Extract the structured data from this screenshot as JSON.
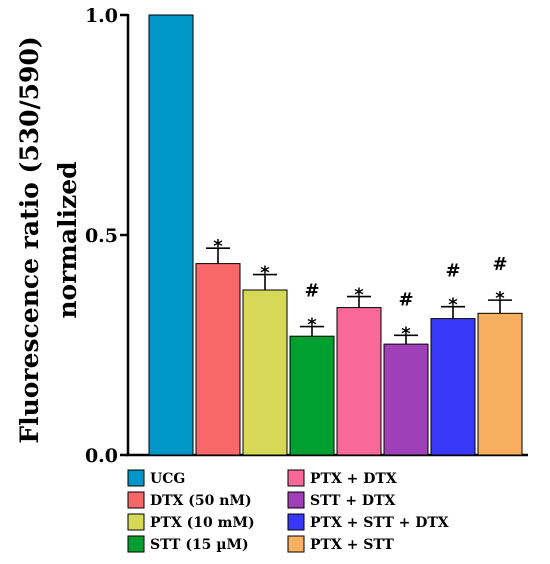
{
  "chart_data": {
    "type": "bar",
    "title": "",
    "xlabel": "",
    "ylabel": "Fluorescence ratio (530/590) normalized",
    "ylabel_lines": [
      "Fluorescence ratio (530/590)",
      "normalized"
    ],
    "ylim": [
      0,
      1.0
    ],
    "yticks": [
      "0.0",
      "0.5",
      "1.0"
    ],
    "grid": false,
    "legend_position": "bottom",
    "categories": [
      "UCG",
      "DTX (50 nM)",
      "PTX (10 mM)",
      "STT (15 µM)",
      "PTX + DTX",
      "STT + DTX",
      "PTX + STT + DTX",
      "PTX + STT"
    ],
    "values": [
      1.0,
      0.435,
      0.375,
      0.27,
      0.335,
      0.252,
      0.31,
      0.322
    ],
    "errors": [
      0,
      0.035,
      0.035,
      0.022,
      0.025,
      0.02,
      0.027,
      0.03
    ],
    "colors": [
      "#0096c8",
      "#f86868",
      "#d8d858",
      "#00a030",
      "#f86898",
      "#a040b8",
      "#3838f8",
      "#f8b060"
    ],
    "annotations": [
      {
        "index": 1,
        "labels": [
          "*"
        ]
      },
      {
        "index": 2,
        "labels": [
          "*"
        ]
      },
      {
        "index": 3,
        "labels": [
          "#",
          "*"
        ]
      },
      {
        "index": 4,
        "labels": [
          "*"
        ]
      },
      {
        "index": 5,
        "labels": [
          "#",
          "*"
        ]
      },
      {
        "index": 6,
        "labels": [
          "#",
          "*"
        ]
      },
      {
        "index": 7,
        "labels": [
          "#",
          "*"
        ]
      }
    ]
  }
}
